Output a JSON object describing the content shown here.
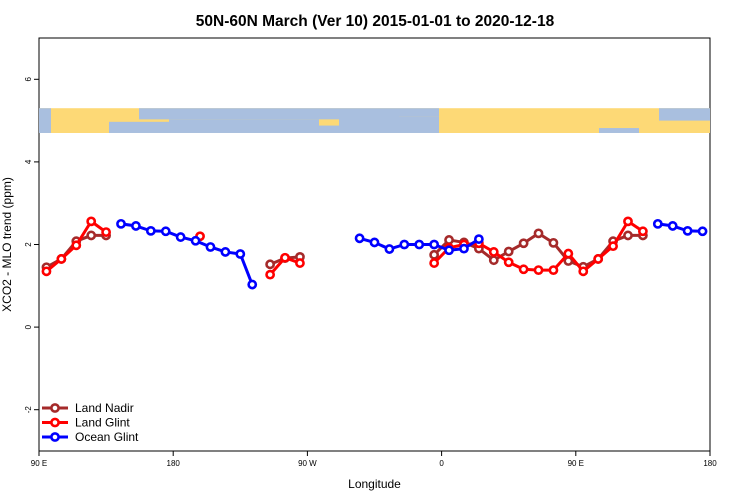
{
  "chart_data": {
    "type": "line",
    "title": "50N-60N March (Ver 10)   2015-01-01 to 2020-12-18",
    "xlabel": "Longitude",
    "ylabel": "XCO2 - MLO trend (ppm)",
    "xlim": [
      90,
      540
    ],
    "ylim": [
      -3,
      7
    ],
    "x_ticks": [
      {
        "value": 90,
        "label": "90 E"
      },
      {
        "value": 180,
        "label": "180"
      },
      {
        "value": 270,
        "label": "90 W"
      },
      {
        "value": 360,
        "label": "0"
      },
      {
        "value": 450,
        "label": "90 E"
      },
      {
        "value": 540,
        "label": "180"
      }
    ],
    "y_ticks": [
      -2,
      0,
      2,
      4,
      6
    ],
    "x_units_note": "continuous longitude from 90 E eastward across the dateline",
    "map_strip": {
      "ymin": 4.7,
      "ymax": 5.3,
      "ocean_color": "#a9bfdf",
      "land_color": "#fdd976"
    },
    "legend": {
      "position": "bottom-left"
    },
    "series": [
      {
        "name": "Land Nadir",
        "color": "#a52a2a",
        "segments": [
          [
            [
              95,
              1.45
            ],
            [
              105,
              1.65
            ],
            [
              115,
              2.08
            ],
            [
              125,
              2.22
            ],
            [
              135,
              2.22
            ]
          ],
          [
            [
              245,
              1.52
            ],
            [
              255,
              1.67
            ],
            [
              265,
              1.7
            ]
          ],
          [
            [
              355,
              1.75
            ],
            [
              365,
              2.11
            ],
            [
              375,
              2.05
            ],
            [
              385,
              1.9
            ],
            [
              395,
              1.62
            ],
            [
              405,
              1.83
            ],
            [
              415,
              2.03
            ],
            [
              425,
              2.27
            ],
            [
              435,
              2.04
            ],
            [
              445,
              1.6
            ],
            [
              455,
              1.46
            ],
            [
              465,
              1.65
            ],
            [
              475,
              2.08
            ],
            [
              485,
              2.22
            ],
            [
              495,
              2.22
            ]
          ]
        ]
      },
      {
        "name": "Land Glint",
        "color": "#ff0000",
        "segments": [
          [
            [
              95,
              1.35
            ],
            [
              105,
              1.65
            ],
            [
              115,
              1.98
            ],
            [
              125,
              2.56
            ],
            [
              135,
              2.3
            ]
          ],
          [
            [
              198,
              2.2
            ]
          ],
          [
            [
              245,
              1.27
            ],
            [
              255,
              1.68
            ],
            [
              265,
              1.55
            ]
          ],
          [
            [
              355,
              1.55
            ],
            [
              365,
              1.92
            ],
            [
              375,
              2.0
            ],
            [
              385,
              2.03
            ],
            [
              395,
              1.82
            ],
            [
              405,
              1.57
            ],
            [
              415,
              1.4
            ],
            [
              425,
              1.38
            ],
            [
              435,
              1.38
            ],
            [
              445,
              1.78
            ],
            [
              455,
              1.35
            ],
            [
              465,
              1.65
            ],
            [
              475,
              1.96
            ],
            [
              485,
              2.56
            ],
            [
              495,
              2.32
            ]
          ]
        ]
      },
      {
        "name": "Ocean Glint",
        "color": "#0000ff",
        "segments": [
          [
            [
              145,
              2.5
            ],
            [
              155,
              2.45
            ],
            [
              165,
              2.33
            ],
            [
              175,
              2.32
            ],
            [
              185,
              2.18
            ],
            [
              195,
              2.09
            ],
            [
              205,
              1.94
            ],
            [
              215,
              1.82
            ],
            [
              225,
              1.77
            ],
            [
              233,
              1.03
            ]
          ],
          [
            [
              305,
              2.15
            ],
            [
              315,
              2.05
            ],
            [
              325,
              1.89
            ],
            [
              335,
              2.0
            ],
            [
              345,
              2.0
            ],
            [
              355,
              2.0
            ],
            [
              365,
              1.86
            ],
            [
              375,
              1.9
            ],
            [
              385,
              2.13
            ]
          ],
          [
            [
              505,
              2.5
            ],
            [
              515,
              2.45
            ],
            [
              525,
              2.33
            ],
            [
              535,
              2.32
            ]
          ]
        ]
      }
    ]
  }
}
